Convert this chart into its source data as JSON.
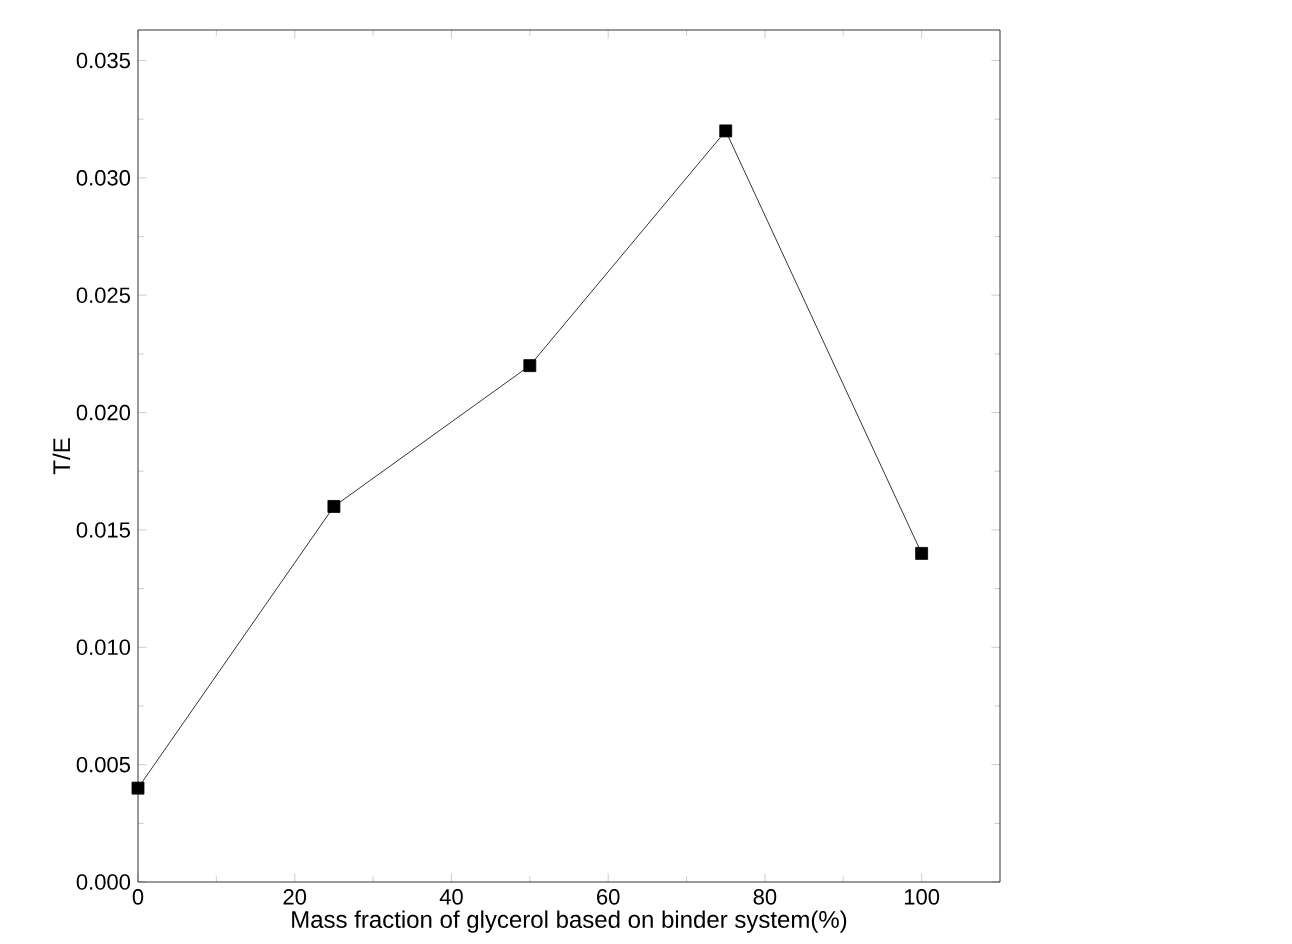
{
  "chart_data": {
    "type": "line",
    "xlabel": "Mass fraction of glycerol based on binder system(%)",
    "ylabel": "T/E",
    "x": [
      0,
      25,
      50,
      75,
      100
    ],
    "series": [
      {
        "color": "#000000",
        "values": [
          0.004,
          0.016,
          0.022,
          0.032,
          0.014
        ]
      }
    ],
    "xlim": [
      0,
      110
    ],
    "xticks": [
      0,
      20,
      40,
      60,
      80,
      100
    ],
    "ylim": [
      0,
      0.0363
    ],
    "yticks": [
      {
        "value": 0,
        "label": "0.000"
      },
      {
        "value": 0.005,
        "label": "0.005"
      },
      {
        "value": 0.01,
        "label": "0.010"
      },
      {
        "value": 0.015,
        "label": "0.015"
      },
      {
        "value": 0.02,
        "label": "0.020"
      },
      {
        "value": 0.025,
        "label": "0.025"
      },
      {
        "value": 0.03,
        "label": "0.030"
      },
      {
        "value": 0.035,
        "label": "0.035"
      }
    ],
    "marker": "square",
    "line_style": "solid"
  }
}
